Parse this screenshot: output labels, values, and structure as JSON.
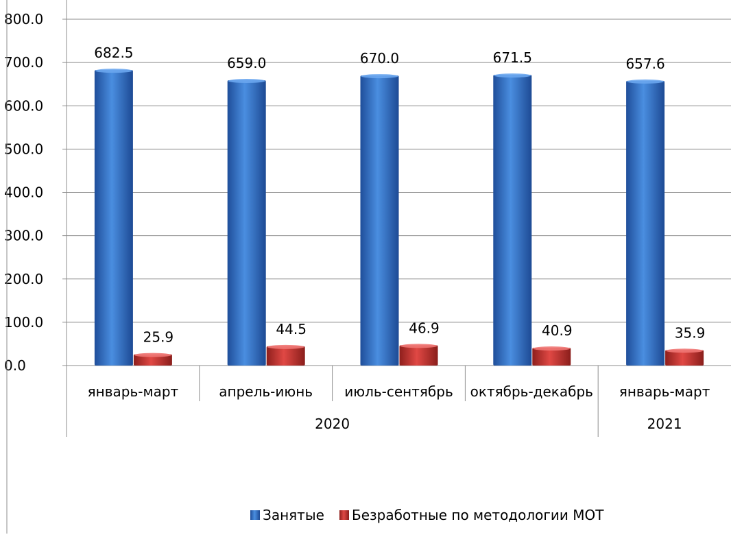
{
  "chart_data": {
    "type": "bar",
    "categories": [
      "январь-март",
      "апрель-июнь",
      "июль-сентябрь",
      "октябрь-декабрь",
      "январь-март"
    ],
    "groups": [
      {
        "label": "2020",
        "span": [
          0,
          3
        ]
      },
      {
        "label": "2021",
        "span": [
          4,
          4
        ]
      }
    ],
    "series": [
      {
        "name": "Занятые",
        "values": [
          682.5,
          659.0,
          670.0,
          671.5,
          657.6
        ],
        "labels": [
          "682.5",
          "659.0",
          "670.0",
          "671.5",
          "657.6"
        ],
        "color": "#2E6FC4"
      },
      {
        "name": "Безработные по методологии МОТ",
        "values": [
          25.9,
          44.5,
          46.9,
          40.9,
          35.9
        ],
        "labels": [
          "25.9",
          "44.5",
          "46.9",
          "40.9",
          "35.9"
        ],
        "color": "#C8312E"
      }
    ],
    "ylim": [
      0,
      800
    ],
    "yticks": [
      "0.0",
      "100.0",
      "200.0",
      "300.0",
      "400.0",
      "500.0",
      "600.0",
      "700.0",
      "800.0"
    ],
    "grid": true,
    "legend_position": "bottom"
  }
}
